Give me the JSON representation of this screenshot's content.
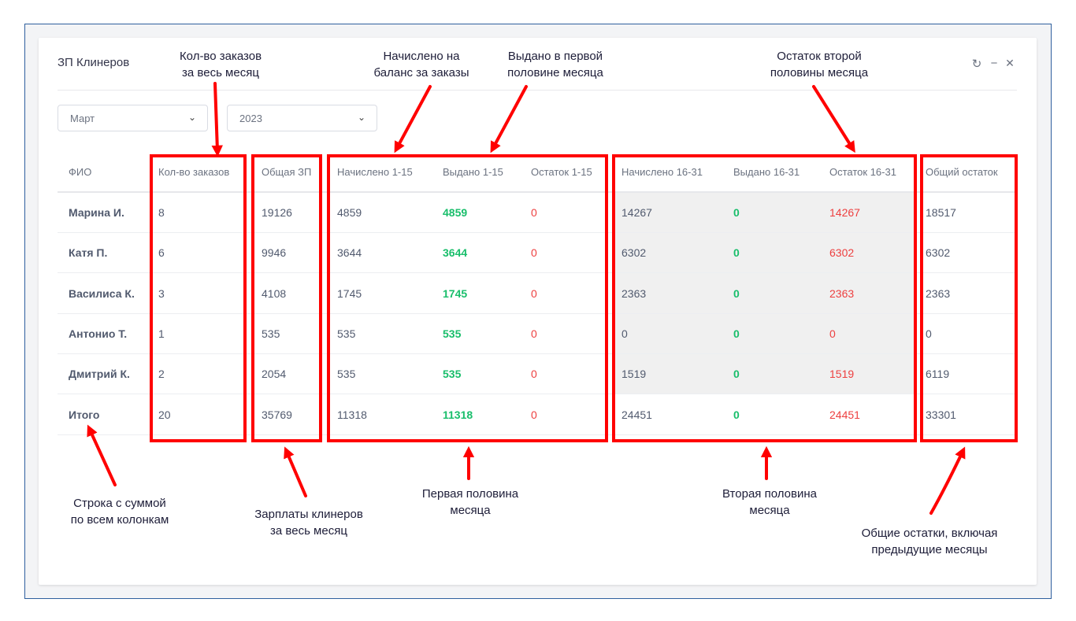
{
  "window": {
    "title": "ЗП Клинеров",
    "refresh_icon": "↻",
    "minimize_icon": "−",
    "close_icon": "✕"
  },
  "filters": {
    "month": "Март",
    "year": "2023",
    "chevron": "⌄"
  },
  "table": {
    "headers": [
      "ФИО",
      "Кол-во заказов",
      "Общая ЗП",
      "Начислено 1-15",
      "Выдано 1-15",
      "Остаток 1-15",
      "Начислено 16-31",
      "Выдано 16-31",
      "Остаток 16-31",
      "Общий остаток"
    ],
    "rows": [
      [
        "Марина И.",
        "8",
        "19126",
        "4859",
        "4859",
        "0",
        "14267",
        "0",
        "14267",
        "18517"
      ],
      [
        "Катя П.",
        "6",
        "9946",
        "3644",
        "3644",
        "0",
        "6302",
        "0",
        "6302",
        "6302"
      ],
      [
        "Василиса К.",
        "3",
        "4108",
        "1745",
        "1745",
        "0",
        "2363",
        "0",
        "2363",
        "2363"
      ],
      [
        "Антонио Т.",
        "1",
        "535",
        "535",
        "535",
        "0",
        "0",
        "0",
        "0",
        "0"
      ],
      [
        "Дмитрий К.",
        "2",
        "2054",
        "535",
        "535",
        "0",
        "1519",
        "0",
        "1519",
        "6119"
      ],
      [
        "Итого",
        "20",
        "35769",
        "11318",
        "11318",
        "0",
        "24451",
        "0",
        "24451",
        "33301"
      ]
    ],
    "colors": {
      "issued": "#19be6b",
      "remainder": "#ed3f3f",
      "text": "#515a6e",
      "second_half_shade": "#f0f0f0"
    }
  },
  "annotations": {
    "orders_count": "Кол-во заказов\nза весь месяц",
    "accrued": "Начислено на\nбаланс за заказы",
    "issued_first": "Выдано в первой\nполовине месяца",
    "remainder_second": "Остаток второй\nполовины месяца",
    "total_row": "Строка с суммой\nпо всем колонкам",
    "salaries": "Зарплаты клинеров\nза весь месяц",
    "first_half": "Первая половина\nмесяца",
    "second_half": "Вторая половина\nмесяца",
    "total_remainders": "Общие остатки, включая\nпредыдущие месяцы",
    "highlight_color": "#ff0000"
  }
}
